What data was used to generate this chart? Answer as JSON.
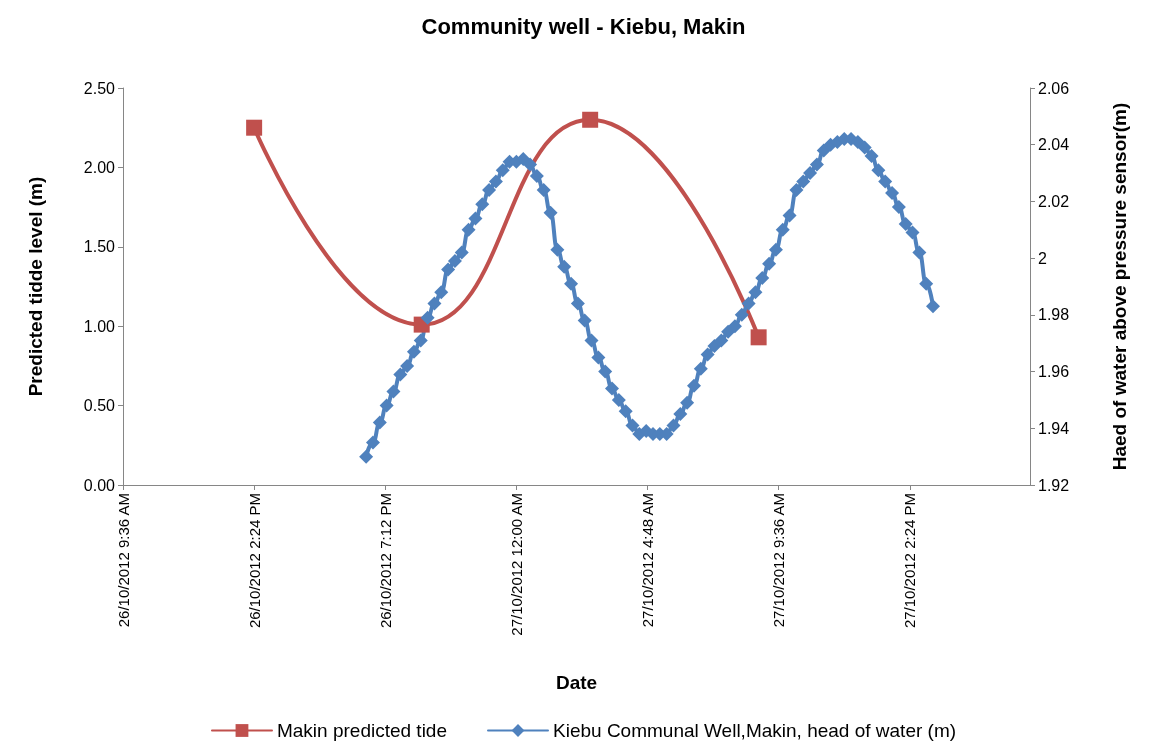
{
  "chart_data": {
    "type": "line",
    "title": "Community well - Kiebu, Makin",
    "xlabel": "Date",
    "ylabel": "Predicted tidde level (m)",
    "y2label": "Haed of water above pressure sensor(m)",
    "xlim": [
      "2012-10-26T09:36",
      "2012-10-27T18:48"
    ],
    "xticks": [
      {
        "value": "2012-10-26T09:36",
        "label": "26/10/2012 9:36 AM"
      },
      {
        "value": "2012-10-26T14:24",
        "label": "26/10/2012 2:24 PM"
      },
      {
        "value": "2012-10-26T19:12",
        "label": "26/10/2012 7:12 PM"
      },
      {
        "value": "2012-10-27T00:00",
        "label": "27/10/2012 12:00 AM"
      },
      {
        "value": "2012-10-27T04:48",
        "label": "27/10/2012 4:48 AM"
      },
      {
        "value": "2012-10-27T09:36",
        "label": "27/10/2012 9:36 AM"
      },
      {
        "value": "2012-10-27T14:24",
        "label": "27/10/2012 2:24 PM"
      }
    ],
    "ylim": [
      0,
      2.5
    ],
    "yticks": [
      {
        "value": 0,
        "label": "0.00"
      },
      {
        "value": 0.5,
        "label": "0.50"
      },
      {
        "value": 1,
        "label": "1.00"
      },
      {
        "value": 1.5,
        "label": "1.50"
      },
      {
        "value": 2,
        "label": "2.00"
      },
      {
        "value": 2.5,
        "label": "2.50"
      }
    ],
    "y2lim": [
      1.92,
      2.06
    ],
    "y2ticks": [
      1.92,
      1.94,
      1.96,
      1.98,
      2,
      2.02,
      2.04,
      2.06
    ],
    "grid": false,
    "legend": "bottom",
    "line_style": "solid",
    "series": [
      {
        "name": "Makin predicted tide",
        "color": "#c0504d",
        "marker": "square",
        "x": [
          "2012-10-26T14:24",
          "2012-10-26T20:32",
          "2012-10-27T02:42",
          "2012-10-27T08:52"
        ],
        "values": [
          2.25,
          1.01,
          2.3,
          0.93
        ]
      },
      {
        "name": "Kiebu Communal Well,Makin, head of water (m)",
        "color": "#4f81bd",
        "marker": "diamond",
        "axis": "y2",
        "x": [
          "2012-10-26T18:30",
          "2012-10-26T18:45",
          "2012-10-26T19:00",
          "2012-10-26T19:15",
          "2012-10-26T19:30",
          "2012-10-26T19:45",
          "2012-10-26T20:00",
          "2012-10-26T20:15",
          "2012-10-26T20:30",
          "2012-10-26T20:45",
          "2012-10-26T21:00",
          "2012-10-26T21:15",
          "2012-10-26T21:30",
          "2012-10-26T21:45",
          "2012-10-26T22:00",
          "2012-10-26T22:15",
          "2012-10-26T22:30",
          "2012-10-26T22:45",
          "2012-10-26T23:00",
          "2012-10-26T23:15",
          "2012-10-26T23:30",
          "2012-10-26T23:45",
          "2012-10-27T00:00",
          "2012-10-27T00:15",
          "2012-10-27T00:30",
          "2012-10-27T00:45",
          "2012-10-27T01:00",
          "2012-10-27T01:15",
          "2012-10-27T01:30",
          "2012-10-27T01:45",
          "2012-10-27T02:00",
          "2012-10-27T02:15",
          "2012-10-27T02:30",
          "2012-10-27T02:45",
          "2012-10-27T03:00",
          "2012-10-27T03:15",
          "2012-10-27T03:30",
          "2012-10-27T03:45",
          "2012-10-27T04:00",
          "2012-10-27T04:15",
          "2012-10-27T04:30",
          "2012-10-27T04:45",
          "2012-10-27T05:00",
          "2012-10-27T05:15",
          "2012-10-27T05:30",
          "2012-10-27T05:45",
          "2012-10-27T06:00",
          "2012-10-27T06:15",
          "2012-10-27T06:30",
          "2012-10-27T06:45",
          "2012-10-27T07:00",
          "2012-10-27T07:15",
          "2012-10-27T07:30",
          "2012-10-27T07:45",
          "2012-10-27T08:00",
          "2012-10-27T08:15",
          "2012-10-27T08:30",
          "2012-10-27T08:45",
          "2012-10-27T09:00",
          "2012-10-27T09:15",
          "2012-10-27T09:30",
          "2012-10-27T09:45",
          "2012-10-27T10:00",
          "2012-10-27T10:15",
          "2012-10-27T10:30",
          "2012-10-27T10:45",
          "2012-10-27T11:00",
          "2012-10-27T11:15",
          "2012-10-27T11:30",
          "2012-10-27T11:45",
          "2012-10-27T12:00",
          "2012-10-27T12:15",
          "2012-10-27T12:30",
          "2012-10-27T12:45",
          "2012-10-27T13:00",
          "2012-10-27T13:15",
          "2012-10-27T13:30",
          "2012-10-27T13:45",
          "2012-10-27T14:00",
          "2012-10-27T14:15",
          "2012-10-27T14:30",
          "2012-10-27T14:45",
          "2012-10-27T15:00",
          "2012-10-27T15:15"
        ],
        "values": [
          1.93,
          1.935,
          1.942,
          1.948,
          1.953,
          1.959,
          1.962,
          1.967,
          1.971,
          1.979,
          1.984,
          1.988,
          1.996,
          1.999,
          2.002,
          2.01,
          2.014,
          2.019,
          2.024,
          2.027,
          2.031,
          2.034,
          2.034,
          2.035,
          2.033,
          2.029,
          2.024,
          2.016,
          2.003,
          1.997,
          1.991,
          1.984,
          1.978,
          1.971,
          1.965,
          1.96,
          1.954,
          1.95,
          1.946,
          1.941,
          1.938,
          1.939,
          1.938,
          1.938,
          1.938,
          1.941,
          1.945,
          1.949,
          1.955,
          1.961,
          1.966,
          1.969,
          1.971,
          1.974,
          1.976,
          1.98,
          1.984,
          1.988,
          1.993,
          1.998,
          2.003,
          2.01,
          2.015,
          2.024,
          2.027,
          2.03,
          2.033,
          2.038,
          2.04,
          2.041,
          2.042,
          2.042,
          2.041,
          2.039,
          2.036,
          2.031,
          2.027,
          2.023,
          2.018,
          2.012,
          2.009,
          2.002,
          1.991,
          1.983
        ]
      }
    ]
  }
}
